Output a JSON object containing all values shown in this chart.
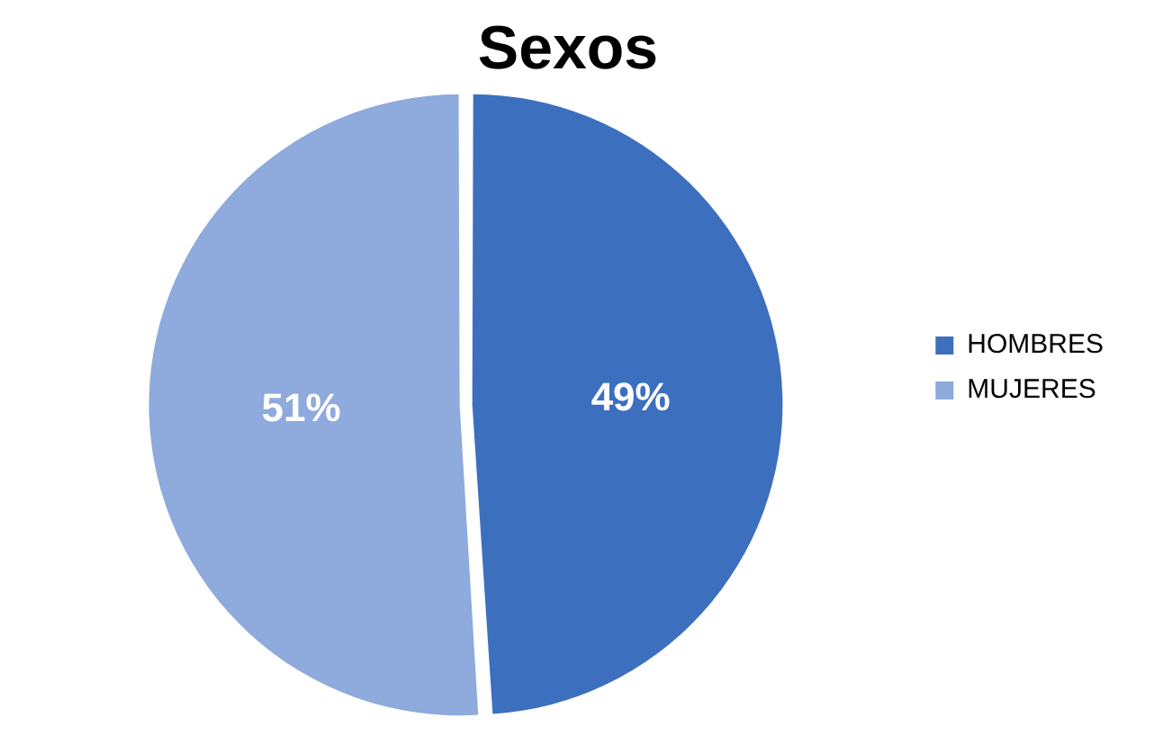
{
  "chart_data": {
    "type": "pie",
    "title": "Sexos",
    "categories": [
      "HOMBRES",
      "MUJERES"
    ],
    "values": [
      49,
      51
    ],
    "colors": [
      "#3d6fbf",
      "#8faadc"
    ],
    "value_labels": [
      "49%",
      "51%"
    ],
    "legend": "right"
  }
}
